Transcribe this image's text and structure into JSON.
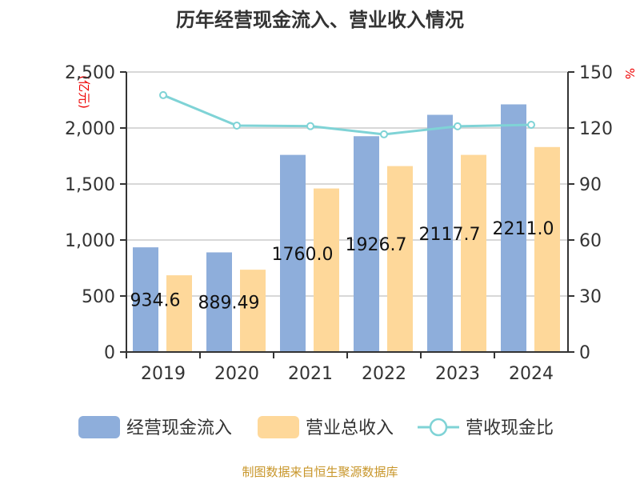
{
  "chart_data": {
    "type": "bar",
    "title": "历年经营现金流入、营业收入情况",
    "categories": [
      "2019",
      "2020",
      "2021",
      "2022",
      "2023",
      "2024"
    ],
    "series": [
      {
        "name": "经营现金流入",
        "type": "bar",
        "axis": "left",
        "color": "#8eaedb",
        "values": [
          934.6,
          889.49,
          1760.0,
          1926.7,
          2117.7,
          2211.0
        ],
        "labels": [
          "934.6",
          "889.49",
          "1760.0",
          "1926.7",
          "2117.7",
          "2211.0"
        ]
      },
      {
        "name": "营业总收入",
        "type": "bar",
        "axis": "left",
        "color": "#fed89a",
        "values": [
          685,
          735,
          1460,
          1660,
          1760,
          1830
        ]
      },
      {
        "name": "营收现金比",
        "type": "line",
        "axis": "right",
        "color": "#7fd3d6",
        "values": [
          137.6,
          121.3,
          121.0,
          116.6,
          120.9,
          121.7
        ]
      }
    ],
    "ylabel": "(亿元)",
    "y2label": "%",
    "ylim": [
      0,
      2500
    ],
    "yticks": [
      "0",
      "500",
      "1,000",
      "1,500",
      "2,000",
      "2,500"
    ],
    "y2lim": [
      0,
      150
    ],
    "y2ticks": [
      "0",
      "30",
      "60",
      "90",
      "120",
      "150"
    ],
    "grid": true,
    "legend": "bottom"
  },
  "source": "制图数据来自恒生聚源数据库"
}
